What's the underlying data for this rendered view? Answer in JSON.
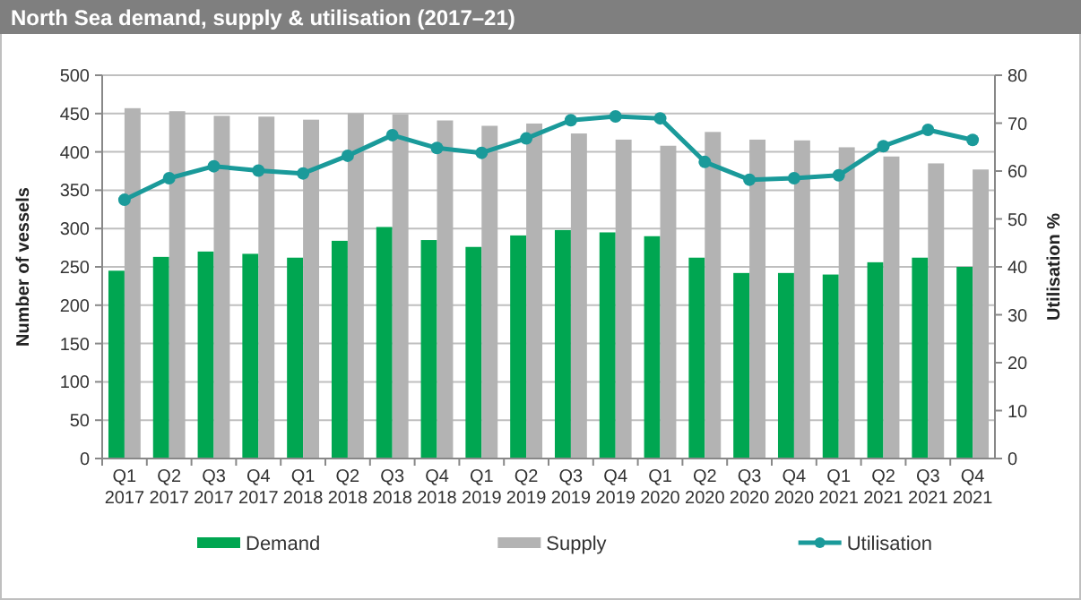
{
  "chart_data": {
    "type": "bar",
    "title": "North Sea demand, supply & utilisation (2017–21)",
    "categories": [
      "Q1\n2017",
      "Q2\n2017",
      "Q3\n2017",
      "Q4\n2017",
      "Q1\n2018",
      "Q2\n2018",
      "Q3\n2018",
      "Q4\n2018",
      "Q1\n2019",
      "Q2\n2019",
      "Q3\n2019",
      "Q4\n2019",
      "Q1\n2020",
      "Q2\n2020",
      "Q3\n2020",
      "Q4\n2020",
      "Q1\n2021",
      "Q2\n2021",
      "Q3\n2021",
      "Q4\n2021"
    ],
    "series": [
      {
        "name": "Demand",
        "color": "#00a651",
        "values": [
          245,
          263,
          270,
          267,
          262,
          284,
          302,
          285,
          276,
          291,
          298,
          295,
          290,
          262,
          242,
          242,
          240,
          256,
          262,
          250
        ]
      },
      {
        "name": "Supply",
        "color": "#b3b3b3",
        "values": [
          457,
          453,
          447,
          446,
          442,
          450,
          449,
          441,
          434,
          437,
          424,
          416,
          408,
          426,
          416,
          415,
          406,
          394,
          385,
          377
        ]
      },
      {
        "name": "Utilisation",
        "type": "line",
        "axis": "y2",
        "color": "#1a9a9a",
        "values": [
          54,
          58.5,
          61,
          60.1,
          59.5,
          63.2,
          67.5,
          64.8,
          63.8,
          66.8,
          70.6,
          71.4,
          71,
          61.9,
          58.2,
          58.5,
          59.1,
          65.2,
          68.6,
          66.5
        ]
      }
    ],
    "ylabel": "Number of vessels",
    "y2label": "Utilisation %",
    "ylim": [
      0,
      500
    ],
    "yticks": [
      0,
      50,
      100,
      150,
      200,
      250,
      300,
      350,
      400,
      450,
      500
    ],
    "y2lim": [
      0,
      80
    ],
    "y2ticks": [
      0,
      10,
      20,
      30,
      40,
      50,
      60,
      70,
      80
    ],
    "grid": "y",
    "legend": "bottom",
    "marker": "circle"
  }
}
